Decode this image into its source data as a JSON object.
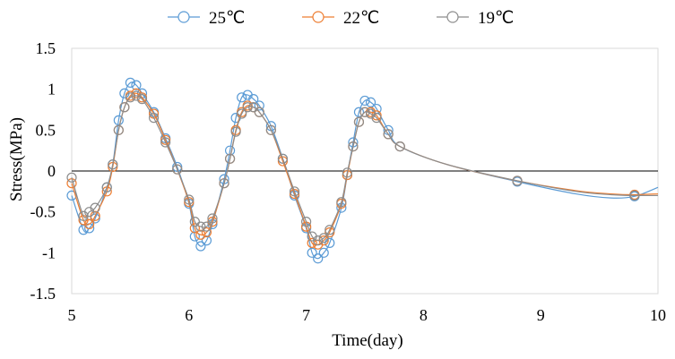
{
  "chart_data": {
    "type": "line",
    "xlabel": "Time(day)",
    "ylabel": "Stress(MPa)",
    "xlim": [
      5,
      10
    ],
    "ylim": [
      -1.5,
      1.5
    ],
    "xticks": [
      "5",
      "6",
      "7",
      "8",
      "9",
      "10"
    ],
    "yticks": [
      "1.5",
      "1",
      "0.5",
      "0",
      "-0.5",
      "-1",
      "-1.5"
    ],
    "legend": "top",
    "grid": false,
    "markers": "open circles",
    "series": [
      {
        "name": "25℃",
        "color": "#5B9BD5",
        "x": [
          5.0,
          5.1,
          5.15,
          5.2,
          5.3,
          5.35,
          5.4,
          5.45,
          5.5,
          5.55,
          5.6,
          5.7,
          5.8,
          5.9,
          6.0,
          6.05,
          6.1,
          6.15,
          6.2,
          6.3,
          6.35,
          6.4,
          6.45,
          6.5,
          6.55,
          6.6,
          6.7,
          6.8,
          6.9,
          7.0,
          7.05,
          7.1,
          7.15,
          7.2,
          7.3,
          7.35,
          7.4,
          7.45,
          7.5,
          7.55,
          7.6,
          7.7,
          7.8,
          8.2,
          8.8,
          9.3,
          9.6,
          9.8,
          10.0
        ],
        "y": [
          -0.3,
          -0.72,
          -0.7,
          -0.58,
          -0.2,
          0.08,
          0.62,
          0.95,
          1.08,
          1.05,
          0.95,
          0.72,
          0.4,
          0.05,
          -0.4,
          -0.8,
          -0.92,
          -0.85,
          -0.65,
          -0.1,
          0.25,
          0.65,
          0.9,
          0.93,
          0.88,
          0.8,
          0.55,
          0.15,
          -0.3,
          -0.7,
          -1.0,
          -1.07,
          -1.0,
          -0.88,
          -0.45,
          -0.05,
          0.35,
          0.72,
          0.86,
          0.84,
          0.76,
          0.5,
          0.3,
          0.08,
          -0.13,
          -0.28,
          -0.33,
          -0.31,
          -0.2
        ]
      },
      {
        "name": "22℃",
        "color": "#ED7D31",
        "x": [
          5.0,
          5.1,
          5.15,
          5.2,
          5.3,
          5.35,
          5.4,
          5.45,
          5.5,
          5.55,
          5.6,
          5.7,
          5.8,
          5.9,
          6.0,
          6.05,
          6.1,
          6.15,
          6.2,
          6.3,
          6.35,
          6.4,
          6.45,
          6.5,
          6.55,
          6.6,
          6.7,
          6.8,
          6.9,
          7.0,
          7.05,
          7.1,
          7.15,
          7.2,
          7.3,
          7.35,
          7.4,
          7.45,
          7.5,
          7.55,
          7.6,
          7.7,
          7.8,
          8.2,
          8.8,
          9.3,
          9.6,
          9.8,
          10.0
        ],
        "y": [
          -0.15,
          -0.6,
          -0.65,
          -0.55,
          -0.25,
          0.05,
          0.5,
          0.78,
          0.92,
          0.95,
          0.9,
          0.7,
          0.38,
          0.02,
          -0.38,
          -0.7,
          -0.78,
          -0.75,
          -0.62,
          -0.15,
          0.15,
          0.5,
          0.72,
          0.8,
          0.78,
          0.72,
          0.5,
          0.12,
          -0.28,
          -0.68,
          -0.88,
          -0.9,
          -0.85,
          -0.75,
          -0.4,
          -0.05,
          0.3,
          0.6,
          0.72,
          0.72,
          0.68,
          0.45,
          0.3,
          0.08,
          -0.12,
          -0.24,
          -0.28,
          -0.29,
          -0.28
        ]
      },
      {
        "name": "19℃",
        "color": "#8C8C8C",
        "x": [
          5.0,
          5.1,
          5.15,
          5.2,
          5.3,
          5.35,
          5.4,
          5.45,
          5.5,
          5.55,
          5.6,
          5.7,
          5.8,
          5.9,
          6.0,
          6.05,
          6.1,
          6.15,
          6.2,
          6.3,
          6.35,
          6.4,
          6.45,
          6.5,
          6.55,
          6.6,
          6.7,
          6.8,
          6.9,
          7.0,
          7.05,
          7.1,
          7.15,
          7.2,
          7.3,
          7.35,
          7.4,
          7.45,
          7.5,
          7.55,
          7.6,
          7.7,
          7.8,
          8.2,
          8.8,
          9.3,
          9.6,
          9.8,
          10.0
        ],
        "y": [
          -0.08,
          -0.55,
          -0.5,
          -0.45,
          -0.2,
          0.08,
          0.5,
          0.78,
          0.9,
          0.92,
          0.88,
          0.65,
          0.35,
          0.02,
          -0.35,
          -0.62,
          -0.68,
          -0.68,
          -0.58,
          -0.15,
          0.15,
          0.48,
          0.7,
          0.78,
          0.78,
          0.72,
          0.5,
          0.15,
          -0.25,
          -0.62,
          -0.8,
          -0.85,
          -0.82,
          -0.72,
          -0.38,
          -0.02,
          0.3,
          0.6,
          0.72,
          0.7,
          0.65,
          0.45,
          0.3,
          0.08,
          -0.12,
          -0.25,
          -0.29,
          -0.3,
          -0.3
        ]
      }
    ]
  }
}
